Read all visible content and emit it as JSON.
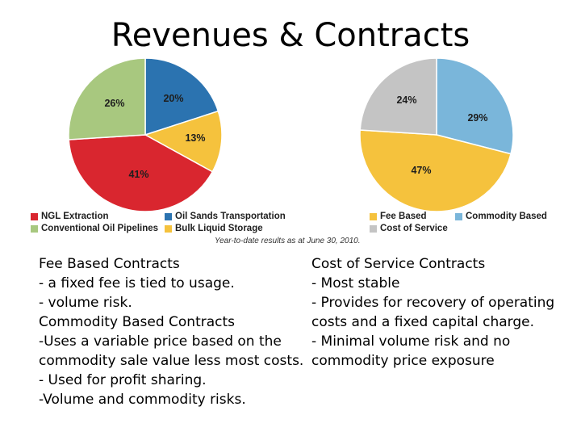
{
  "slide": {
    "title": "Revenues & Contracts"
  },
  "chart_data": [
    {
      "type": "pie",
      "values": [
        20,
        13,
        41,
        26
      ],
      "labels": [
        "20%",
        "13%",
        "41%",
        "26%"
      ],
      "colors": [
        "#2b73b0",
        "#f5c23d",
        "#d9262f",
        "#a8c87f"
      ],
      "legend": [
        {
          "label": "NGL Extraction",
          "color": "#d9262f"
        },
        {
          "label": "Oil Sands Transportation",
          "color": "#2b73b0"
        },
        {
          "label": "Conventional Oil Pipelines",
          "color": "#a8c87f"
        },
        {
          "label": "Bulk Liquid Storage",
          "color": "#f5c23d"
        }
      ]
    },
    {
      "type": "pie",
      "values": [
        29,
        47,
        24
      ],
      "labels": [
        "29%",
        "47%",
        "24%"
      ],
      "colors": [
        "#7ab6da",
        "#f5c23d",
        "#c4c4c4"
      ],
      "legend": [
        {
          "label": "Fee Based",
          "color": "#f5c23d"
        },
        {
          "label": "Commodity Based",
          "color": "#7ab6da"
        },
        {
          "label": "Cost of Service",
          "color": "#c4c4c4"
        }
      ]
    }
  ],
  "footnote": "Year-to-date results as at June 30, 2010.",
  "left_text": [
    "Fee Based Contracts",
    "- a fixed fee is tied to usage.",
    "- volume risk.",
    "Commodity Based Contracts",
    "-Uses a variable price based on the",
    "commodity sale value less most costs.",
    "- Used for profit sharing.",
    "-Volume and commodity risks."
  ],
  "right_text": [
    "Cost of Service Contracts",
    "- Most stable",
    "- Provides for recovery of operating",
    "costs and a fixed capital charge.",
    "- Minimal volume risk and no",
    "commodity price exposure"
  ]
}
